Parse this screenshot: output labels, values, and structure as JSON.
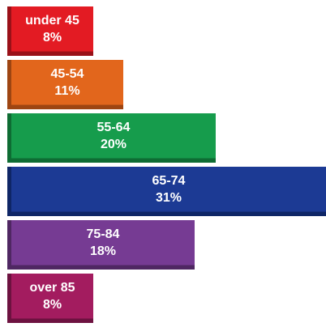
{
  "chart_data": {
    "type": "bar",
    "orientation": "horizontal",
    "categories": [
      "under 45",
      "45-54",
      "55-64",
      "65-74",
      "75-84",
      "over 85"
    ],
    "values": [
      8,
      11,
      20,
      31,
      18,
      8
    ],
    "value_labels": [
      "8%",
      "11%",
      "20%",
      "31%",
      "18%",
      "8%"
    ],
    "colors": [
      "#e31b23",
      "#e2661c",
      "#169c4c",
      "#1c3a94",
      "#763b93",
      "#a31c5f"
    ],
    "side_colors": [
      "#9a1118",
      "#9e4512",
      "#0e6c33",
      "#0f2666",
      "#4f2762",
      "#6d1240"
    ],
    "unit": "%",
    "title": "",
    "xlabel": "",
    "ylabel": ""
  }
}
